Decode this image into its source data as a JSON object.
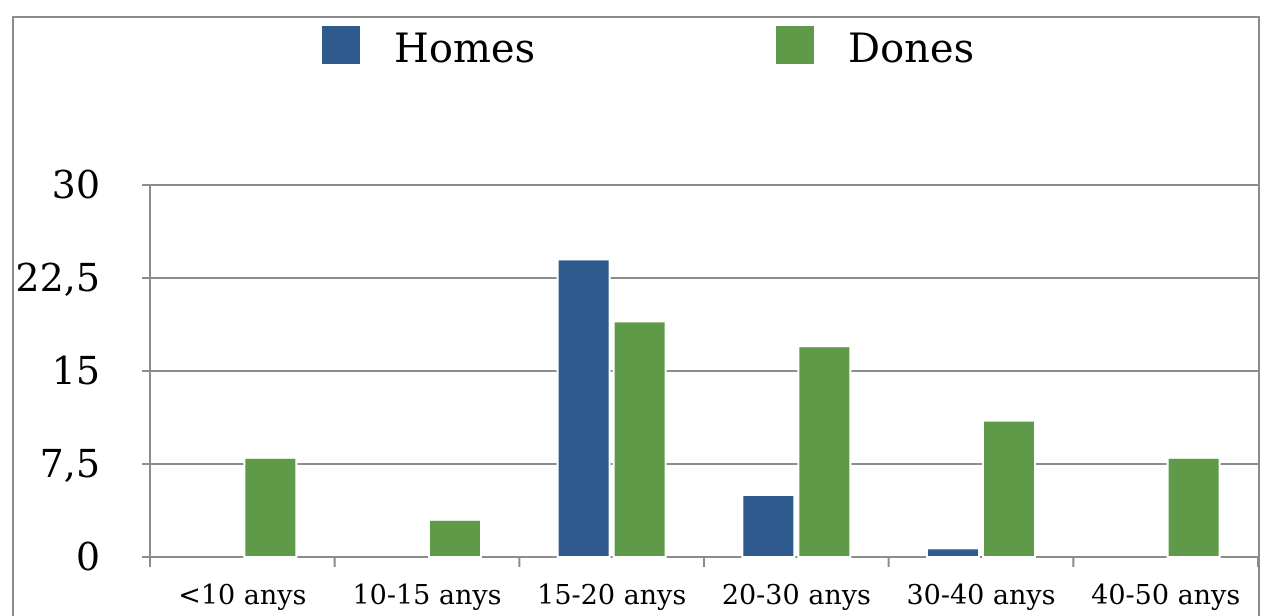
{
  "chart_data": {
    "type": "bar",
    "categories": [
      "<10 anys",
      "10-15 anys",
      "15-20 anys",
      "20-30 anys",
      "30-40 anys",
      "40-50 anys"
    ],
    "series": [
      {
        "name": "Homes",
        "color": "#2e5a8e",
        "values": [
          0,
          0,
          24,
          5,
          0.7,
          0
        ]
      },
      {
        "name": "Dones",
        "color": "#5e9a47",
        "values": [
          8,
          3,
          19,
          17,
          11,
          8
        ]
      }
    ],
    "yticks": [
      "0",
      "7,5",
      "15",
      "22,5",
      "30"
    ],
    "ytick_values": [
      0,
      7.5,
      15,
      22.5,
      30
    ],
    "ylim": [
      0,
      30
    ],
    "grid": true,
    "legend_position": "top"
  }
}
